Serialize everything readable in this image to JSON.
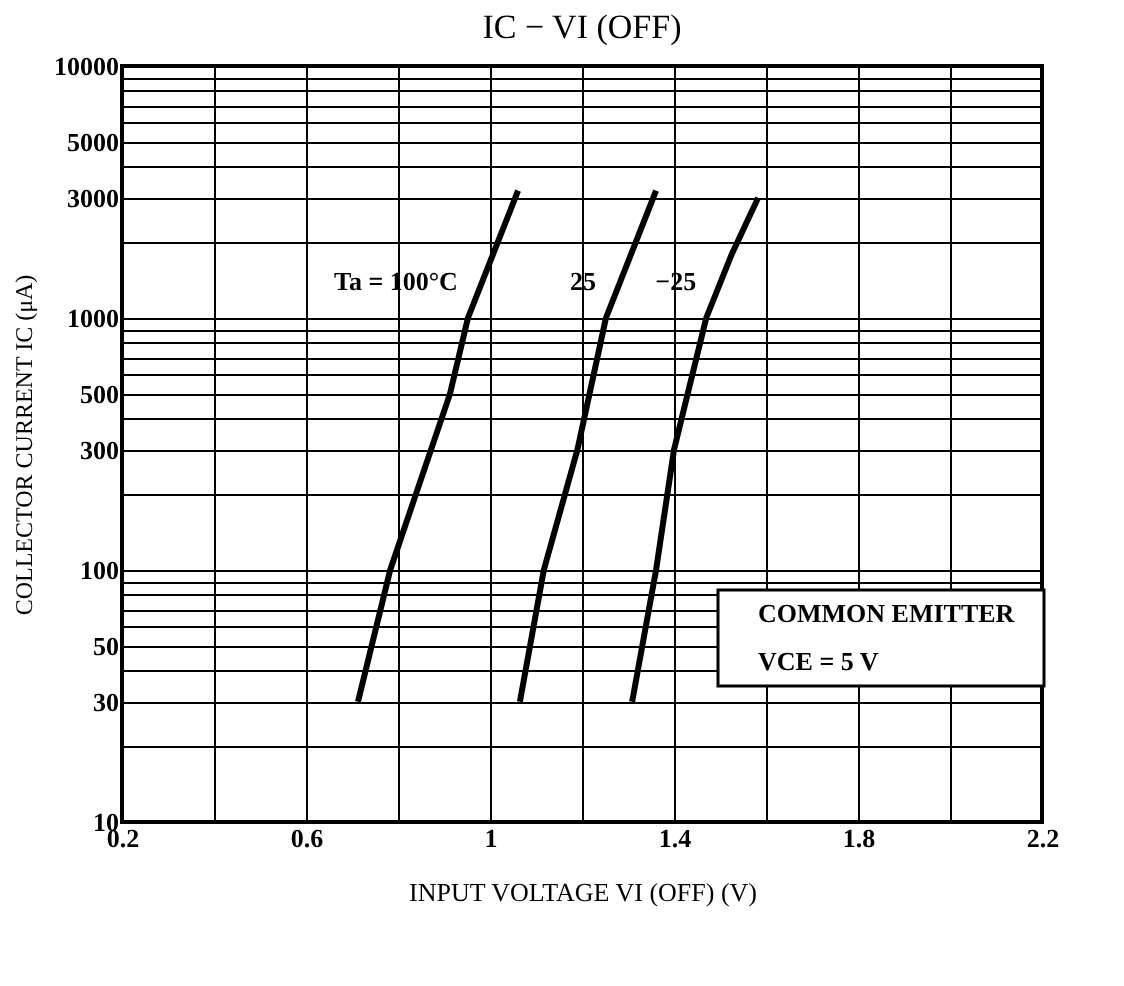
{
  "chart_data": {
    "type": "line",
    "title": "IC − VI (OFF)",
    "xlabel": "INPUT VOLTAGE VI (OFF) (V)",
    "ylabel": "COLLECTOR CURRENT IC (μA)",
    "series": [
      {
        "name": "Ta = 100°C",
        "color": "#000000",
        "x": [
          0.713,
          0.783,
          0.913,
          0.952,
          1.061
        ],
        "values": [
          30,
          100,
          500,
          1000,
          3200
        ]
      },
      {
        "name": "25",
        "color": "#000000",
        "x": [
          1.065,
          1.117,
          1.19,
          1.252,
          1.361
        ],
        "values": [
          30,
          100,
          300,
          1000,
          3200
        ]
      },
      {
        "name": "−25",
        "color": "#000000",
        "x": [
          1.309,
          1.361,
          1.4,
          1.47,
          1.526,
          1.583
        ],
        "values": [
          30,
          100,
          300,
          1000,
          1800,
          3000
        ]
      }
    ],
    "annotations": [
      "COMMON EMITTER",
      "VCE = 5 V"
    ],
    "log": "y",
    "xlim": [
      0.2,
      2.2
    ],
    "ylim": [
      10,
      10000
    ],
    "xticks": [
      0.2,
      {
        "value": 0.4,
        "label": null
      },
      0.6,
      {
        "value": 0.8,
        "label": null
      },
      1,
      {
        "value": 1.2,
        "label": null
      },
      1.4,
      {
        "value": 1.6,
        "label": null
      },
      1.8,
      {
        "value": 2.0,
        "label": null
      },
      2.2
    ],
    "yticks": [
      10,
      {
        "value": 20,
        "label": null
      },
      30,
      {
        "value": 40,
        "label": null
      },
      50,
      {
        "value": 60,
        "label": null
      },
      {
        "value": 70,
        "label": null
      },
      {
        "value": 80,
        "label": null
      },
      {
        "value": 90,
        "label": null
      },
      100,
      {
        "value": 200,
        "label": null
      },
      300,
      {
        "value": 400,
        "label": null
      },
      500,
      {
        "value": 600,
        "label": null
      },
      {
        "value": 700,
        "label": null
      },
      {
        "value": 800,
        "label": null
      },
      {
        "value": 900,
        "label": null
      },
      1000,
      {
        "value": 2000,
        "label": null
      },
      3000,
      {
        "value": 4000,
        "label": null
      },
      5000,
      {
        "value": 6000,
        "label": null
      },
      {
        "value": 7000,
        "label": null
      },
      {
        "value": 8000,
        "label": null
      },
      {
        "value": 9000,
        "label": null
      },
      10000
    ],
    "grid": true,
    "legend": false,
    "marker": "none",
    "line_style": "solid"
  }
}
